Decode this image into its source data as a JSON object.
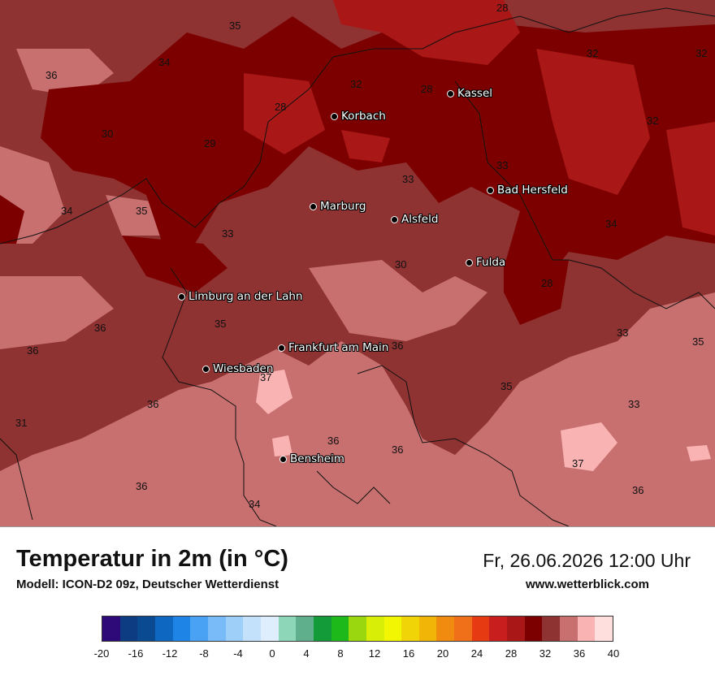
{
  "title": "Temperatur in 2m (in °C)",
  "model": "Modell: ICON-D2 09z, Deutscher Wetterdienst",
  "datetime": "Fr, 26.06.2026 12:00 Uhr",
  "website": "www.wetterblick.com",
  "cities": [
    {
      "name": "Kassel"
    },
    {
      "name": "Korbach"
    },
    {
      "name": "Bad Hersfeld"
    },
    {
      "name": "Marburg"
    },
    {
      "name": "Alsfeld"
    },
    {
      "name": "Fulda"
    },
    {
      "name": "Limburg an der Lahn"
    },
    {
      "name": "Frankfurt am Main"
    },
    {
      "name": "Wiesbaden"
    },
    {
      "name": "Bensheim"
    }
  ],
  "temperature_labels": [
    "28",
    "35",
    "34",
    "36",
    "32",
    "32",
    "32",
    "28",
    "32",
    "28",
    "30",
    "29",
    "33",
    "33",
    "34",
    "35",
    "33",
    "30",
    "34",
    "28",
    "35",
    "36",
    "33",
    "35",
    "36",
    "36",
    "37",
    "35",
    "36",
    "33",
    "31",
    "36",
    "37",
    "36",
    "34",
    "36",
    "36"
  ],
  "legend": {
    "colors": [
      "#2e0a78",
      "#0d3c82",
      "#0a4a91",
      "#0e67c0",
      "#1e84e6",
      "#4aa2f5",
      "#79bbf8",
      "#9dcff9",
      "#c4e1fb",
      "#dfeefd",
      "#8ed6b8",
      "#5fae8c",
      "#139b3a",
      "#1db91b",
      "#9bd70e",
      "#d9ee06",
      "#f2f602",
      "#f1d407",
      "#f1b507",
      "#f18b10",
      "#f0701a",
      "#e63b12",
      "#c81e1e",
      "#a91717",
      "#7c0000",
      "#8e3232",
      "#c87070",
      "#fab3b3",
      "#ffdede"
    ],
    "tick_labels": [
      "-20",
      "-16",
      "-12",
      "-8",
      "-4",
      "0",
      "4",
      "8",
      "12",
      "16",
      "20",
      "24",
      "28",
      "32",
      "36",
      "40"
    ]
  }
}
